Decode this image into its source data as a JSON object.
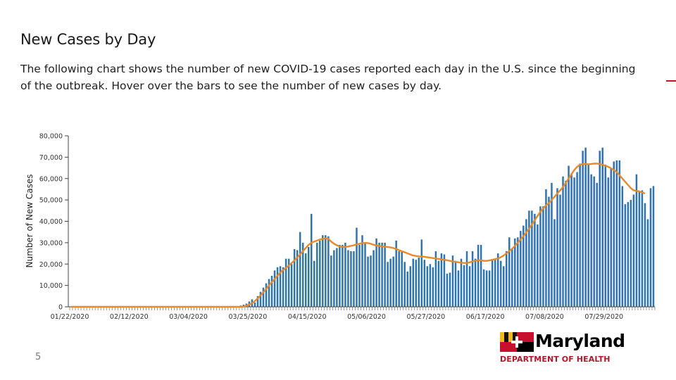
{
  "slide": {
    "title": "New Cases by Day",
    "subtitle": "The following chart shows the number of new COVID-19 cases reported each day in the U.S. since the beginning of the outbreak. Hover over the bars to see the number of new cases by day.",
    "page_number": "5"
  },
  "logo": {
    "wordmark": "Maryland",
    "department": "DEPARTMENT OF HEALTH",
    "colors": {
      "red": "#c8102e",
      "gold": "#f2b922",
      "black": "#000000",
      "white": "#ffffff"
    }
  },
  "colors": {
    "bar": "#2e75b0",
    "avg_line": "#e8892a",
    "accent": "#c8102e"
  },
  "chart_data": {
    "type": "bar",
    "ylabel": "Number of New Cases",
    "xlabel": "",
    "ylim": [
      0,
      80000
    ],
    "yticks": [
      "0",
      "10,000",
      "20,000",
      "30,000",
      "40,000",
      "50,000",
      "60,000",
      "70,000",
      "80,000"
    ],
    "ytick_values": [
      0,
      10000,
      20000,
      30000,
      40000,
      50000,
      60000,
      70000,
      80000
    ],
    "xtick_labels": [
      "01/22/2020",
      "02/12/2020",
      "03/04/2020",
      "03/25/2020",
      "04/15/2020",
      "05/06/2020",
      "05/27/2020",
      "06/17/2020",
      "07/08/2020",
      "07/29/2020"
    ],
    "xtick_day_index": [
      0,
      21,
      42,
      63,
      84,
      105,
      126,
      147,
      168,
      189
    ],
    "start_date": "01/22/2020",
    "series": [
      {
        "name": "New Cases",
        "kind": "bar",
        "values": [
          0,
          0,
          0,
          0,
          0,
          0,
          0,
          0,
          0,
          0,
          0,
          0,
          0,
          0,
          0,
          0,
          0,
          0,
          0,
          0,
          0,
          0,
          0,
          0,
          0,
          0,
          0,
          0,
          0,
          0,
          0,
          0,
          0,
          0,
          0,
          0,
          0,
          0,
          0,
          0,
          0,
          0,
          0,
          0,
          0,
          0,
          0,
          0,
          0,
          0,
          0,
          0,
          0,
          0,
          0,
          0,
          0,
          0,
          200,
          300,
          600,
          1000,
          1500,
          2500,
          3500,
          2000,
          5000,
          7000,
          9000,
          11000,
          13000,
          14500,
          17000,
          18500,
          19000,
          18500,
          22500,
          22500,
          20000,
          27000,
          26500,
          35000,
          30000,
          25000,
          28000,
          43500,
          21500,
          30000,
          31000,
          33500,
          33500,
          33000,
          24000,
          26500,
          27500,
          29000,
          29000,
          30000,
          26500,
          26000,
          26000,
          37000,
          29000,
          33500,
          30000,
          23500,
          24000,
          26500,
          32000,
          30000,
          30000,
          30000,
          21000,
          22500,
          23500,
          31000,
          26000,
          26000,
          21000,
          16500,
          19000,
          22500,
          22000,
          23000,
          31500,
          22000,
          19000,
          20000,
          18500,
          26000,
          21500,
          25000,
          24500,
          15500,
          16000,
          24000,
          21500,
          17000,
          22500,
          19500,
          26000,
          19000,
          26000,
          22500,
          29000,
          29000,
          17500,
          17000,
          17000,
          22000,
          22000,
          25000,
          21500,
          19000,
          26000,
          32500,
          27000,
          32000,
          32500,
          35500,
          38000,
          41000,
          45000,
          45000,
          43500,
          38500,
          47000,
          47000,
          55000,
          51500,
          58000,
          41000,
          55500,
          52500,
          61000,
          59000,
          66000,
          62500,
          60500,
          63000,
          67000,
          73000,
          74500,
          67000,
          62000,
          61000,
          58000,
          73000,
          74500,
          66500,
          60500,
          64500,
          68000,
          68500,
          68500,
          56500,
          48000,
          49000,
          50000,
          52500,
          62000,
          54000,
          54500,
          48500,
          41000,
          55500,
          56500
        ]
      },
      {
        "name": "7-Day Average",
        "kind": "line",
        "values": [
          0,
          0,
          0,
          0,
          0,
          0,
          0,
          0,
          0,
          0,
          0,
          0,
          0,
          0,
          0,
          0,
          0,
          0,
          0,
          0,
          0,
          0,
          0,
          0,
          0,
          0,
          0,
          0,
          0,
          0,
          0,
          0,
          0,
          0,
          0,
          0,
          0,
          0,
          0,
          0,
          0,
          0,
          0,
          0,
          0,
          0,
          0,
          0,
          0,
          0,
          0,
          0,
          0,
          0,
          0,
          0,
          0,
          0,
          0,
          0,
          0,
          100,
          500,
          1000,
          1700,
          2700,
          3900,
          5300,
          6800,
          8300,
          10000,
          11500,
          13000,
          14500,
          16000,
          17200,
          18200,
          19300,
          20500,
          21700,
          23000,
          24500,
          26000,
          27500,
          29000,
          30000,
          30500,
          31000,
          31500,
          31800,
          32000,
          31800,
          30500,
          29500,
          28800,
          28200,
          28000,
          28000,
          28200,
          28500,
          28800,
          29200,
          29500,
          29800,
          29900,
          29800,
          29500,
          29000,
          28700,
          28500,
          28300,
          28100,
          28000,
          27800,
          27500,
          27000,
          26500,
          26000,
          25500,
          25000,
          24500,
          24000,
          23800,
          23600,
          23500,
          23400,
          23200,
          23000,
          22800,
          22600,
          22400,
          22200,
          22000,
          21800,
          21500,
          21200,
          21000,
          20800,
          20600,
          20500,
          20500,
          20800,
          21200,
          21600,
          21800,
          21800,
          21500,
          21500,
          21700,
          22000,
          22300,
          22600,
          23200,
          24000,
          25000,
          26000,
          27200,
          28500,
          30000,
          31500,
          33000,
          34800,
          36500,
          38500,
          40500,
          42500,
          44500,
          46000,
          47500,
          48500,
          50000,
          51500,
          53000,
          54500,
          56000,
          58000,
          60000,
          62000,
          64000,
          65500,
          66500,
          66800,
          66800,
          66700,
          66800,
          67000,
          67000,
          66800,
          66500,
          66000,
          65500,
          64800,
          64000,
          63000,
          61500,
          60000,
          58500,
          57000,
          55500,
          54500,
          54200,
          54000,
          53500,
          53000
        ]
      }
    ]
  }
}
